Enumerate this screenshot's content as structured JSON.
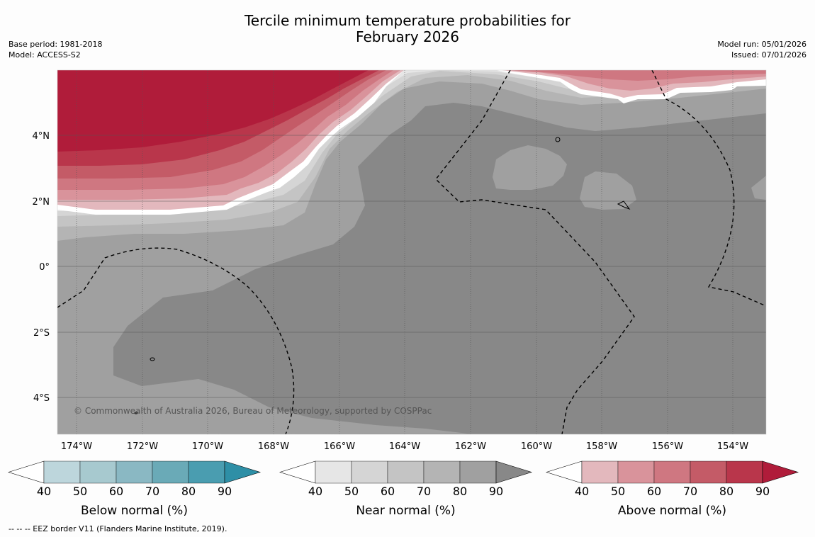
{
  "title_line1": "Tercile minimum temperature probabilities for",
  "title_line2": "February 2026",
  "base_period": "Base period: 1981-2018",
  "model": "Model: ACCESS-S2",
  "model_run": "Model run: 05/01/2026",
  "issued": "Issued: 07/01/2026",
  "copyright": "© Commonwealth of Australia 2026, Bureau of Meteorology, supported by COSPPac",
  "footer": "--  --  -- EEZ border V11 (Flanders Marine Institute, 2019).",
  "axes": {
    "lon_ticks": [
      "174°W",
      "172°W",
      "170°W",
      "168°W",
      "166°W",
      "164°W",
      "162°W",
      "160°W",
      "158°W",
      "156°W",
      "154°W"
    ],
    "lat_ticks": [
      "4°N",
      "2°N",
      "0°",
      "2°S",
      "4°S"
    ]
  },
  "colorbars": [
    {
      "label": "Below normal (%)",
      "ticks": [
        "40",
        "50",
        "60",
        "70",
        "80",
        "90"
      ],
      "colors": [
        "#ffffff",
        "#bdd6dc",
        "#a7c9cf",
        "#8ab8c3",
        "#6aaab7",
        "#4a9db0",
        "#2e8fa6"
      ]
    },
    {
      "label": "Near normal (%)",
      "ticks": [
        "40",
        "50",
        "60",
        "70",
        "80",
        "90"
      ],
      "colors": [
        "#ffffff",
        "#e6e6e6",
        "#d5d5d5",
        "#c4c4c4",
        "#b4b4b4",
        "#a0a0a0",
        "#888888"
      ]
    },
    {
      "label": "Above normal (%)",
      "ticks": [
        "40",
        "50",
        "60",
        "70",
        "80",
        "90"
      ],
      "colors": [
        "#ffffff",
        "#e3b8bd",
        "#d9939b",
        "#cf7781",
        "#c45b67",
        "#b9364b",
        "#b01c3a"
      ]
    }
  ]
}
